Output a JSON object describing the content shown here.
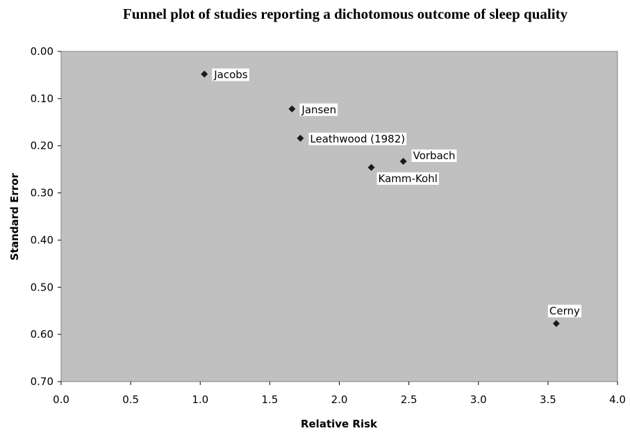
{
  "chart_data": {
    "type": "scatter",
    "title": "Funnel plot of studies reporting a dichotomous outcome of sleep quality",
    "xlabel": "Relative Risk",
    "ylabel": "Standard Error",
    "xlim": [
      0.0,
      4.0
    ],
    "ylim": [
      0.0,
      0.7
    ],
    "y_inverted": true,
    "x_ticks": [
      "0.0",
      "0.5",
      "1.0",
      "1.5",
      "2.0",
      "2.5",
      "3.0",
      "3.5",
      "4.0"
    ],
    "y_ticks": [
      "0.00",
      "0.10",
      "0.20",
      "0.30",
      "0.40",
      "0.50",
      "0.60",
      "0.70"
    ],
    "grid": false,
    "plot_background": "#c0c0c0",
    "marker_color": "#1a1a1a",
    "marker": "diamond",
    "points": [
      {
        "label": "Jacobs",
        "x": 1.03,
        "y": 0.048
      },
      {
        "label": "Jansen",
        "x": 1.66,
        "y": 0.122
      },
      {
        "label": "Leathwood (1982)",
        "x": 1.72,
        "y": 0.184
      },
      {
        "label": "Vorbach",
        "x": 2.46,
        "y": 0.233
      },
      {
        "label": "Kamm-Kohl",
        "x": 2.23,
        "y": 0.246
      },
      {
        "label": "Cerny",
        "x": 3.56,
        "y": 0.577
      }
    ]
  }
}
